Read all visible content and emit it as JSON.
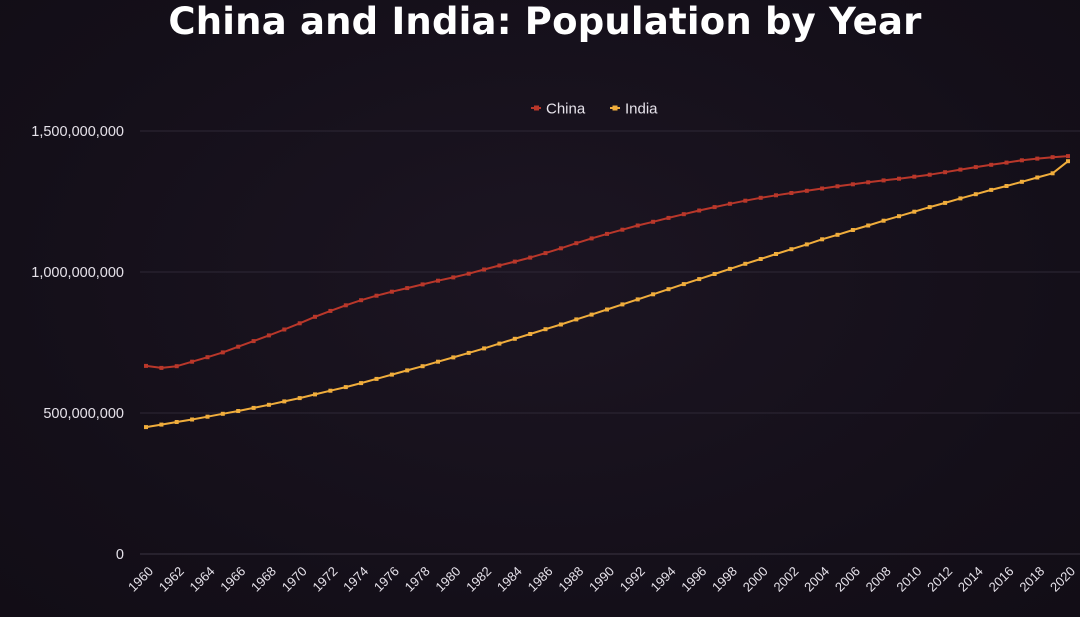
{
  "chart_data": {
    "type": "line",
    "title": "China and India: Population by Year",
    "xlabel": "",
    "ylabel": "",
    "ylim": [
      0,
      1500000000
    ],
    "yticks": [
      0,
      500000000,
      1000000000,
      1500000000
    ],
    "ytick_labels": [
      "0",
      "500,000,000",
      "1,000,000,000",
      "1,500,000,000"
    ],
    "xtick_labels": [
      "1960",
      "1962",
      "1964",
      "1966",
      "1968",
      "1970",
      "1972",
      "1974",
      "1976",
      "1978",
      "1980",
      "1982",
      "1984",
      "1986",
      "1988",
      "1990",
      "1992",
      "1994",
      "1996",
      "1998",
      "2000",
      "2002",
      "2004",
      "2006",
      "2008",
      "2010",
      "2012",
      "2014",
      "2016",
      "2018",
      "2020"
    ],
    "grid": true,
    "legend_position": "top-center",
    "x": [
      1960,
      1961,
      1962,
      1963,
      1964,
      1965,
      1966,
      1967,
      1968,
      1969,
      1970,
      1971,
      1972,
      1973,
      1974,
      1975,
      1976,
      1977,
      1978,
      1979,
      1980,
      1981,
      1982,
      1983,
      1984,
      1985,
      1986,
      1987,
      1988,
      1989,
      1990,
      1991,
      1992,
      1993,
      1994,
      1995,
      1996,
      1997,
      1998,
      1999,
      2000,
      2001,
      2002,
      2003,
      2004,
      2005,
      2006,
      2007,
      2008,
      2009,
      2010,
      2011,
      2012,
      2013,
      2014,
      2015,
      2016,
      2017,
      2018,
      2019,
      2020
    ],
    "series": [
      {
        "name": "China",
        "color": "#b9372a",
        "values": [
          667000000,
          660000000,
          666000000,
          682000000,
          698000000,
          715000000,
          735000000,
          755000000,
          775000000,
          796000000,
          818000000,
          841000000,
          862000000,
          882000000,
          900000000,
          916000000,
          930000000,
          943000000,
          956000000,
          969000000,
          981000000,
          994000000,
          1009000000,
          1023000000,
          1037000000,
          1051000000,
          1067000000,
          1084000000,
          1102000000,
          1119000000,
          1135000000,
          1150000000,
          1165000000,
          1178000000,
          1192000000,
          1205000000,
          1218000000,
          1230000000,
          1242000000,
          1253000000,
          1263000000,
          1272000000,
          1280000000,
          1288000000,
          1296000000,
          1304000000,
          1311000000,
          1318000000,
          1325000000,
          1331000000,
          1338000000,
          1345000000,
          1354000000,
          1363000000,
          1372000000,
          1380000000,
          1388000000,
          1396000000,
          1402000000,
          1407000000,
          1411000000
        ]
      },
      {
        "name": "India",
        "color": "#f0ad3c",
        "values": [
          450000000,
          459000000,
          468000000,
          477000000,
          487000000,
          497000000,
          507000000,
          518000000,
          529000000,
          541000000,
          553000000,
          566000000,
          579000000,
          592000000,
          606000000,
          621000000,
          636000000,
          651000000,
          666000000,
          682000000,
          697000000,
          713000000,
          729000000,
          746000000,
          763000000,
          780000000,
          797000000,
          814000000,
          832000000,
          849000000,
          867000000,
          885000000,
          903000000,
          921000000,
          939000000,
          957000000,
          975000000,
          993000000,
          1011000000,
          1029000000,
          1046000000,
          1064000000,
          1081000000,
          1098000000,
          1116000000,
          1132000000,
          1149000000,
          1165000000,
          1182000000,
          1198000000,
          1214000000,
          1230000000,
          1245000000,
          1261000000,
          1276000000,
          1291000000,
          1305000000,
          1320000000,
          1335000000,
          1350000000,
          1393000000
        ]
      }
    ]
  }
}
